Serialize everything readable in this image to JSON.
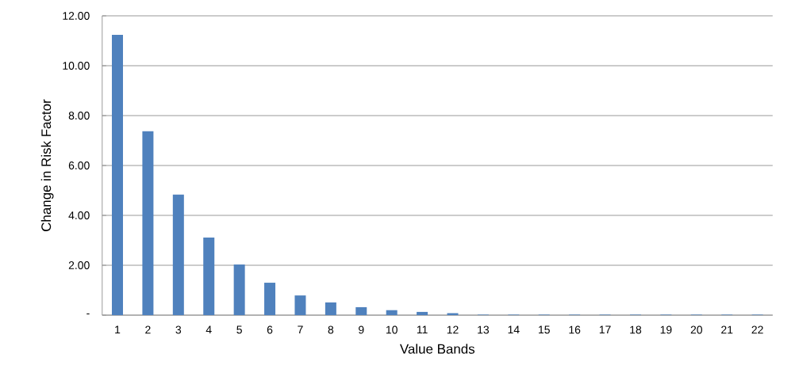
{
  "chart_data": {
    "type": "bar",
    "xlabel": "Value Bands",
    "ylabel": "Change in Risk Factor",
    "categories": [
      "1",
      "2",
      "3",
      "4",
      "5",
      "6",
      "7",
      "8",
      "9",
      "10",
      "11",
      "12",
      "13",
      "14",
      "15",
      "16",
      "17",
      "18",
      "19",
      "20",
      "21",
      "22"
    ],
    "values": [
      11.24,
      7.37,
      4.83,
      3.11,
      2.03,
      1.3,
      0.79,
      0.51,
      0.32,
      0.2,
      0.13,
      0.08,
      0.02,
      0.02,
      0.02,
      0.02,
      0.02,
      0.02,
      0.02,
      0.02,
      0.02,
      0.02
    ],
    "color": "#4f81bd",
    "ylim": [
      0,
      12
    ],
    "yticks": [
      {
        "value": 0,
        "label": "-"
      },
      {
        "value": 2,
        "label": "2.00"
      },
      {
        "value": 4,
        "label": "4.00"
      },
      {
        "value": 6,
        "label": "6.00"
      },
      {
        "value": 8,
        "label": "8.00"
      },
      {
        "value": 10,
        "label": "10.00"
      },
      {
        "value": 12,
        "label": "12.00"
      }
    ],
    "grid": "y"
  }
}
